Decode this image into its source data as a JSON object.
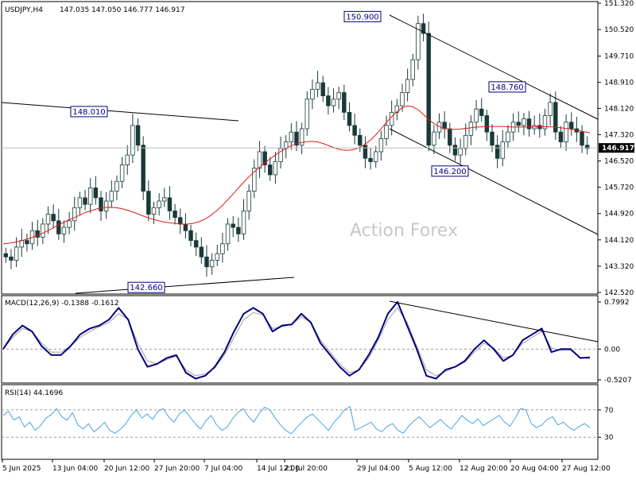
{
  "header": {
    "symbol": "USDJPY,H4",
    "ohlc": "147.035 147.050 146.777 146.917"
  },
  "watermark": "Action Forex",
  "colors": {
    "candle": "#1a3a3a",
    "ma": "#e01b1b",
    "macd": "#000080",
    "signal": "#a0a0a0",
    "rsi": "#4aa3df",
    "trendline": "#000000",
    "label_border": "#000080",
    "price_tag_bg": "#000000"
  },
  "chart_data": [
    {
      "type": "candlestick",
      "title": "USDJPY,H4",
      "ylim": [
        142.52,
        151.32
      ],
      "yticks": [
        "151.320",
        "150.520",
        "149.710",
        "148.910",
        "148.120",
        "147.320",
        "146.520",
        "145.720",
        "144.920",
        "144.120",
        "143.320",
        "142.520"
      ],
      "last_price": "146.917",
      "series": [
        {
          "name": "close",
          "values": [
            143.6,
            143.5,
            143.9,
            144.1,
            144.0,
            144.4,
            144.2,
            144.6,
            144.9,
            144.7,
            144.3,
            144.5,
            144.7,
            145.1,
            145.4,
            145.2,
            145.7,
            145.4,
            145.0,
            145.3,
            145.6,
            145.9,
            146.4,
            146.7,
            147.6,
            147.0,
            145.6,
            144.9,
            145.1,
            145.3,
            145.4,
            145.0,
            144.8,
            144.6,
            144.4,
            144.1,
            143.9,
            143.6,
            143.3,
            143.5,
            143.7,
            144.0,
            144.6,
            144.5,
            144.3,
            145.0,
            145.6,
            146.3,
            146.8,
            146.4,
            146.1,
            146.5,
            146.9,
            147.1,
            147.4,
            147.0,
            147.5,
            148.4,
            148.7,
            148.9,
            148.5,
            148.2,
            148.4,
            148.6,
            148.0,
            147.6,
            147.3,
            147.0,
            146.6,
            146.5,
            146.8,
            147.2,
            147.6,
            148.0,
            148.2,
            148.6,
            149.0,
            149.6,
            150.7,
            150.4,
            147.0,
            147.4,
            147.7,
            147.5,
            147.0,
            146.7,
            146.9,
            147.3,
            147.7,
            148.1,
            147.9,
            147.4,
            147.0,
            146.6,
            147.1,
            147.4,
            147.7,
            147.6,
            147.8,
            147.5,
            147.6,
            147.5,
            147.9,
            148.3,
            147.4,
            147.1,
            147.7,
            147.5,
            147.4,
            147.0,
            146.9
          ]
        },
        {
          "name": "MA",
          "values": [
            144.0,
            144.02,
            144.05,
            144.09,
            144.14,
            144.2,
            144.27,
            144.35,
            144.44,
            144.54,
            144.63,
            144.72,
            144.8,
            144.88,
            144.96,
            145.02,
            145.07,
            145.1,
            145.11,
            145.1,
            145.07,
            145.02,
            144.96,
            144.89,
            144.82,
            144.76,
            144.71,
            144.67,
            144.64,
            144.62,
            144.6,
            144.6,
            144.62,
            144.67,
            144.75,
            144.86,
            145.0,
            145.17,
            145.36,
            145.56,
            145.76,
            145.95,
            146.13,
            146.29,
            146.44,
            146.58,
            146.71,
            146.83,
            146.93,
            147.01,
            147.07,
            147.1,
            147.12,
            147.1,
            147.05,
            146.98,
            146.91,
            146.86,
            146.84,
            146.86,
            146.92,
            147.02,
            147.16,
            147.34,
            147.55,
            147.76,
            147.95,
            148.1,
            148.19,
            148.18,
            148.08,
            147.92,
            147.75,
            147.62,
            147.53,
            147.49,
            147.48,
            147.49,
            147.51,
            147.53,
            147.55,
            147.56,
            147.57,
            147.57,
            147.57,
            147.56,
            147.55,
            147.55,
            147.55,
            147.55,
            147.56,
            147.56,
            147.56,
            147.55,
            147.53,
            147.51,
            147.48,
            147.45,
            147.41,
            147.38
          ]
        }
      ],
      "annotations": [
        {
          "text": "150.900",
          "value": 150.9
        },
        {
          "text": "148.760",
          "value": 148.76
        },
        {
          "text": "148.010",
          "value": 148.01
        },
        {
          "text": "146.200",
          "value": 146.2
        },
        {
          "text": "142.660",
          "value": 142.66
        }
      ]
    },
    {
      "type": "line",
      "title": "MACD(12,26,9) -0.1388 -0.1612",
      "ylim": [
        -0.5207,
        0.7992
      ],
      "yticks": [
        "0.7992",
        "0.00",
        "-0.5207"
      ],
      "series": [
        {
          "name": "MACD",
          "values": [
            0.0,
            0.25,
            0.4,
            0.3,
            0.05,
            -0.1,
            -0.1,
            0.05,
            0.25,
            0.35,
            0.4,
            0.5,
            0.7,
            0.5,
            0.0,
            -0.3,
            -0.25,
            -0.15,
            -0.1,
            -0.4,
            -0.5,
            -0.45,
            -0.3,
            -0.05,
            0.3,
            0.6,
            0.7,
            0.6,
            0.3,
            0.4,
            0.42,
            0.6,
            0.45,
            0.1,
            -0.1,
            -0.3,
            -0.45,
            -0.35,
            -0.1,
            0.2,
            0.6,
            0.8,
            0.4,
            0.0,
            -0.45,
            -0.5,
            -0.35,
            -0.3,
            -0.2,
            0.0,
            0.15,
            0.0,
            -0.2,
            -0.1,
            0.15,
            0.25,
            0.35,
            -0.05,
            0.0,
            0.0,
            -0.15,
            -0.14
          ]
        },
        {
          "name": "Signal",
          "values": [
            0.0,
            0.2,
            0.35,
            0.3,
            0.1,
            -0.05,
            -0.05,
            0.05,
            0.2,
            0.3,
            0.38,
            0.45,
            0.6,
            0.5,
            0.1,
            -0.2,
            -0.25,
            -0.18,
            -0.12,
            -0.35,
            -0.45,
            -0.42,
            -0.32,
            -0.1,
            0.2,
            0.5,
            0.62,
            0.58,
            0.35,
            0.38,
            0.42,
            0.55,
            0.45,
            0.15,
            -0.05,
            -0.25,
            -0.4,
            -0.35,
            -0.15,
            0.15,
            0.5,
            0.7,
            0.45,
            0.05,
            -0.35,
            -0.45,
            -0.38,
            -0.3,
            -0.22,
            -0.05,
            0.1,
            0.02,
            -0.15,
            -0.1,
            0.1,
            0.2,
            0.3,
            0.02,
            -0.02,
            -0.02,
            -0.14,
            -0.16
          ]
        }
      ]
    },
    {
      "type": "line",
      "title": "RSI(14) 44.1696",
      "ylim": [
        0,
        100
      ],
      "levels": [
        "70",
        "30"
      ],
      "series": [
        {
          "name": "RSI",
          "values": [
            62,
            68,
            55,
            60,
            45,
            52,
            40,
            47,
            58,
            63,
            72,
            60,
            55,
            66,
            48,
            42,
            50,
            38,
            44,
            52,
            40,
            36,
            42,
            50,
            62,
            70,
            58,
            64,
            56,
            68,
            72,
            60,
            52,
            64,
            70,
            60,
            50,
            42,
            54,
            62,
            48,
            40,
            45,
            57,
            66,
            72,
            60,
            52,
            65,
            74,
            70,
            58,
            48,
            40,
            35,
            44,
            52,
            60,
            64,
            56,
            48,
            40,
            52,
            60,
            70,
            75,
            40,
            44,
            48,
            52,
            42,
            38,
            46,
            50,
            40,
            36,
            46,
            54,
            60,
            52,
            44,
            50,
            56,
            48,
            42,
            52,
            62,
            55,
            50,
            57,
            47,
            52,
            57,
            62,
            52,
            46,
            58,
            72,
            70,
            50,
            44,
            48,
            56,
            60,
            48,
            52,
            45,
            40,
            46,
            50,
            44
          ]
        }
      ]
    }
  ],
  "x_axis": {
    "labels": [
      "5 Jun 2025",
      "13 Jun 04:00",
      "20 Jun 12:00",
      "27 Jun 20:00",
      "7 Jul 04:00",
      "14 Jul 12:00",
      "21 Jul 20:00",
      "29 Jul 04:00",
      "5 Aug 12:00",
      "12 Aug 20:00",
      "20 Aug 04:00",
      "27 Aug 12:00"
    ]
  }
}
